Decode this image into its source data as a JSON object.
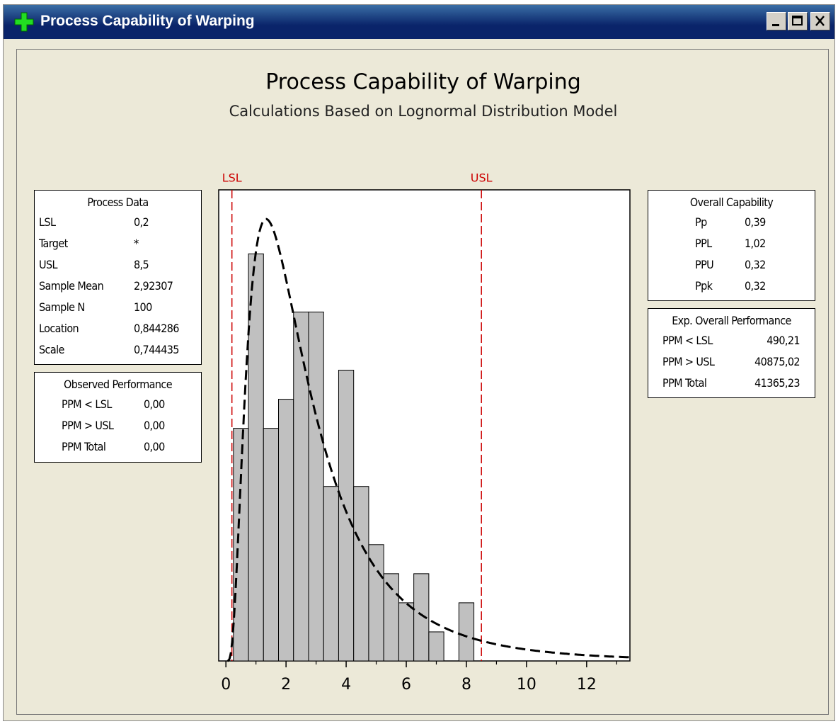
{
  "window": {
    "title": "Process Capability of Warping"
  },
  "chart_data": {
    "type": "histogram",
    "title": "Process Capability of Warping",
    "subtitle": "Calculations Based on Lognormal Distribution Model",
    "bins": [
      0.25,
      0.75,
      1.25,
      1.75,
      2.25,
      2.75,
      3.25,
      3.75,
      4.25,
      4.75,
      5.25,
      5.75,
      6.25,
      6.75,
      7.25,
      7.75,
      8.25
    ],
    "values": [
      8,
      14,
      8,
      9,
      12,
      12,
      6,
      10,
      6,
      4,
      3,
      2,
      3,
      1,
      0,
      2
    ],
    "color": "#c0c0c0",
    "xlim": [
      -0.24,
      13.44
    ],
    "xticks": [
      0,
      2,
      4,
      6,
      8,
      10,
      12
    ],
    "xminorticks": [
      1,
      3,
      5,
      7,
      9,
      11,
      13
    ],
    "ylim": [
      0,
      16.2
    ],
    "fit": {
      "distribution": "lognormal",
      "location": 0.844286,
      "scale": 0.744435,
      "n": 100
    },
    "spec_limits": [
      {
        "name": "LSL",
        "value": 0.2
      },
      {
        "name": "USL",
        "value": 8.5
      }
    ],
    "spec_color": "#cc0000"
  },
  "process_data": {
    "title": "Process Data",
    "rows": [
      [
        "LSL",
        "0,2"
      ],
      [
        "Target",
        "*"
      ],
      [
        "USL",
        "8,5"
      ],
      [
        "Sample Mean",
        "2,92307"
      ],
      [
        "Sample N",
        "100"
      ],
      [
        "Location",
        "0,844286"
      ],
      [
        "Scale",
        "0,744435"
      ]
    ]
  },
  "observed_performance": {
    "title": "Observed Performance",
    "rows": [
      [
        "PPM < LSL",
        "0,00"
      ],
      [
        "PPM > USL",
        "0,00"
      ],
      [
        "PPM Total",
        "0,00"
      ]
    ]
  },
  "overall_capability": {
    "title": "Overall Capability",
    "rows": [
      [
        "Pp",
        "0,39"
      ],
      [
        "PPL",
        "1,02"
      ],
      [
        "PPU",
        "0,32"
      ],
      [
        "Ppk",
        "0,32"
      ]
    ]
  },
  "exp_overall_performance": {
    "title": "Exp. Overall Performance",
    "rows": [
      [
        "PPM < LSL",
        "490,21"
      ],
      [
        "PPM > USL",
        "40875,02"
      ],
      [
        "PPM Total",
        "41365,23"
      ]
    ]
  }
}
